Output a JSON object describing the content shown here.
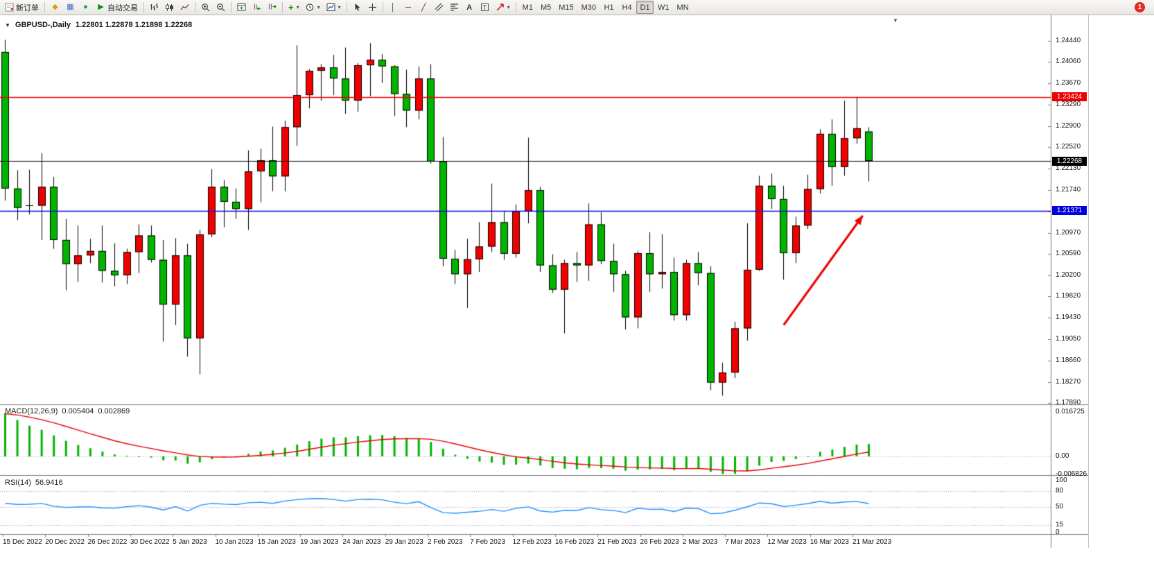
{
  "toolbar": {
    "new_order_label": "新订单",
    "auto_trading_label": "自动交易",
    "timeframes": [
      "M1",
      "M5",
      "M15",
      "M30",
      "H1",
      "H4",
      "D1",
      "W1",
      "MN"
    ],
    "active_timeframe": "D1",
    "notification_count": "1"
  },
  "icons": {
    "market_watch": "◆",
    "data_window": "▦",
    "navigator": "●",
    "auto_trading": "▶",
    "indicators_plus": "+",
    "vertical_line": "│",
    "horizontal_line": "─",
    "trendline": "╱",
    "text_tool": "A",
    "label_tool": "T",
    "dropdown_caret": "▾",
    "chart_collapse": "▼",
    "chart_shift_marker": "▼"
  },
  "chart": {
    "symbol_period": "GBPUSD-,Daily",
    "ohlc_text": "1.22801 1.22878 1.21898 1.22268"
  },
  "indicators": {
    "macd": {
      "name": "MACD(12,26,9)",
      "main_value": "0.005404",
      "signal_value": "0.002869",
      "axis_labels": [
        "0.016725",
        "0.00",
        "-0.006826"
      ]
    },
    "rsi": {
      "name": "RSI(14)",
      "value": "56.9416",
      "axis_labels": [
        "100",
        "80",
        "50",
        "15",
        "0"
      ],
      "levels": [
        80,
        50,
        15
      ]
    }
  },
  "chart_data": {
    "type": "candlestick",
    "symbol": "GBPUSD-",
    "timeframe": "Daily",
    "price_axis": {
      "max": 1.2444,
      "min": 1.1789,
      "ticks": [
        "1.24440",
        "1.24060",
        "1.23670",
        "1.23290",
        "1.22900",
        "1.22520",
        "1.22130",
        "1.21740",
        "1.21350",
        "1.20970",
        "1.20590",
        "1.20200",
        "1.19820",
        "1.19430",
        "1.19050",
        "1.18660",
        "1.18270",
        "1.17890"
      ]
    },
    "macd_axis": {
      "max": 0.016725,
      "min": -0.006826
    },
    "rsi_axis": {
      "max": 100,
      "min": 0
    },
    "time_axis": [
      "15 Dec 2022",
      "20 Dec 2022",
      "26 Dec 2022",
      "30 Dec 2022",
      "5 Jan 2023",
      "10 Jan 2023",
      "15 Jan 2023",
      "19 Jan 2023",
      "24 Jan 2023",
      "29 Jan 2023",
      "2 Feb 2023",
      "7 Feb 2023",
      "12 Feb 2023",
      "16 Feb 2023",
      "21 Feb 2023",
      "26 Feb 2023",
      "2 Mar 2023",
      "7 Mar 2023",
      "12 Mar 2023",
      "16 Mar 2023",
      "21 Mar 2023"
    ],
    "candles": [
      [
        1.2424,
        1.2446,
        1.2155,
        1.2177
      ],
      [
        1.2177,
        1.221,
        1.212,
        1.2142
      ],
      [
        1.2145,
        1.2211,
        1.213,
        1.2146
      ],
      [
        1.2146,
        1.2241,
        1.2084,
        1.218
      ],
      [
        1.218,
        1.2198,
        1.2068,
        1.2084
      ],
      [
        1.2084,
        1.2122,
        1.1993,
        1.204
      ],
      [
        1.204,
        1.211,
        1.2008,
        1.2056
      ],
      [
        1.2056,
        1.2086,
        1.2042,
        1.2064
      ],
      [
        1.2064,
        1.211,
        1.2007,
        1.2028
      ],
      [
        1.2028,
        1.2078,
        1.2,
        1.202
      ],
      [
        1.202,
        1.2068,
        1.2004,
        1.2062
      ],
      [
        1.2062,
        1.2112,
        1.2024,
        1.2092
      ],
      [
        1.2092,
        1.211,
        1.2043,
        1.2048
      ],
      [
        1.2048,
        1.2084,
        1.19,
        1.1967
      ],
      [
        1.1967,
        1.2087,
        1.193,
        1.2056
      ],
      [
        1.2056,
        1.2077,
        1.1873,
        1.1906
      ],
      [
        1.1906,
        1.2102,
        1.1841,
        1.2094
      ],
      [
        1.2094,
        1.2212,
        1.2089,
        1.218
      ],
      [
        1.218,
        1.2192,
        1.2107,
        1.2153
      ],
      [
        1.2153,
        1.2177,
        1.2122,
        1.214
      ],
      [
        1.214,
        1.2246,
        1.2102,
        1.2208
      ],
      [
        1.2208,
        1.2249,
        1.2152,
        1.2228
      ],
      [
        1.2228,
        1.2289,
        1.2172,
        1.2199
      ],
      [
        1.2199,
        1.23,
        1.2172,
        1.2288
      ],
      [
        1.2288,
        1.2436,
        1.2254,
        1.2346
      ],
      [
        1.2346,
        1.2393,
        1.2322,
        1.239
      ],
      [
        1.239,
        1.2402,
        1.2336,
        1.2396
      ],
      [
        1.2396,
        1.2419,
        1.2346,
        1.2376
      ],
      [
        1.2376,
        1.2432,
        1.2312,
        1.2336
      ],
      [
        1.2336,
        1.2404,
        1.2316,
        1.24
      ],
      [
        1.24,
        1.244,
        1.2344,
        1.241
      ],
      [
        1.241,
        1.242,
        1.2368,
        1.2398
      ],
      [
        1.2398,
        1.24,
        1.2308,
        1.2348
      ],
      [
        1.2348,
        1.2392,
        1.2288,
        1.2318
      ],
      [
        1.2318,
        1.2398,
        1.2302,
        1.2376
      ],
      [
        1.2376,
        1.2402,
        1.2222,
        1.2226
      ],
      [
        1.2226,
        1.227,
        1.2036,
        1.205
      ],
      [
        1.205,
        1.2066,
        1.2004,
        1.2022
      ],
      [
        1.2022,
        1.2086,
        1.1961,
        1.2049
      ],
      [
        1.2049,
        1.2116,
        1.2026,
        1.2072
      ],
      [
        1.2072,
        1.2186,
        1.2062,
        1.2116
      ],
      [
        1.2116,
        1.2136,
        1.2048,
        1.2059
      ],
      [
        1.2059,
        1.2148,
        1.2052,
        1.2136
      ],
      [
        1.2136,
        1.2269,
        1.2114,
        1.2174
      ],
      [
        1.2174,
        1.218,
        1.2026,
        1.2038
      ],
      [
        1.2038,
        1.2058,
        1.1988,
        1.1994
      ],
      [
        1.1994,
        1.2048,
        1.1915,
        1.2042
      ],
      [
        1.2042,
        1.2062,
        1.2008,
        1.2038
      ],
      [
        1.2038,
        1.215,
        1.201,
        1.2112
      ],
      [
        1.2112,
        1.2134,
        1.204,
        1.2046
      ],
      [
        1.2046,
        1.2077,
        1.199,
        1.2022
      ],
      [
        1.2022,
        1.2028,
        1.1922,
        1.1944
      ],
      [
        1.1944,
        1.2064,
        1.1924,
        1.206
      ],
      [
        1.206,
        1.2098,
        1.199,
        1.2022
      ],
      [
        1.2022,
        1.2094,
        1.1996,
        1.2026
      ],
      [
        1.2026,
        1.2052,
        1.1938,
        1.1948
      ],
      [
        1.1948,
        1.2048,
        1.1938,
        1.2042
      ],
      [
        1.2042,
        1.2062,
        1.2002,
        1.2024
      ],
      [
        1.2024,
        1.2036,
        1.1812,
        1.1826
      ],
      [
        1.1826,
        1.1862,
        1.1802,
        1.1844
      ],
      [
        1.1844,
        1.1936,
        1.1834,
        1.1924
      ],
      [
        1.1924,
        1.2114,
        1.1902,
        1.203
      ],
      [
        1.203,
        1.22,
        1.2028,
        1.2182
      ],
      [
        1.2182,
        1.2204,
        1.214,
        1.2158
      ],
      [
        1.2158,
        1.2182,
        1.2012,
        1.206
      ],
      [
        1.206,
        1.2126,
        1.2042,
        1.211
      ],
      [
        1.211,
        1.2202,
        1.2104,
        1.2176
      ],
      [
        1.2176,
        1.2284,
        1.2168,
        1.2276
      ],
      [
        1.2276,
        1.2302,
        1.2182,
        1.2216
      ],
      [
        1.2216,
        1.2336,
        1.22,
        1.2268
      ],
      [
        1.2268,
        1.2343,
        1.2258,
        1.2286
      ],
      [
        1.22801,
        1.22878,
        1.21898,
        1.22268
      ]
    ],
    "colors": {
      "up": "#f20000",
      "down": "#00b400",
      "wick": "#000000",
      "macd_histogram": "#00b400",
      "macd_signal": "#e80000",
      "rsi_line": "#1e90ff"
    },
    "hlines": [
      {
        "price": 1.23424,
        "label": "1.23424",
        "color": "#ee0000",
        "width": 1.6
      },
      {
        "price": 1.22268,
        "label": "1.22268",
        "color": "#000000",
        "width": 1.2
      },
      {
        "price": 1.21371,
        "label": "1.21371",
        "color": "#0000dd",
        "width": 1.6
      }
    ],
    "arrow": {
      "from_index": 64,
      "from_price": 1.193,
      "to_index": 70.5,
      "to_price": 1.2128,
      "color": "#ee0000"
    }
  }
}
